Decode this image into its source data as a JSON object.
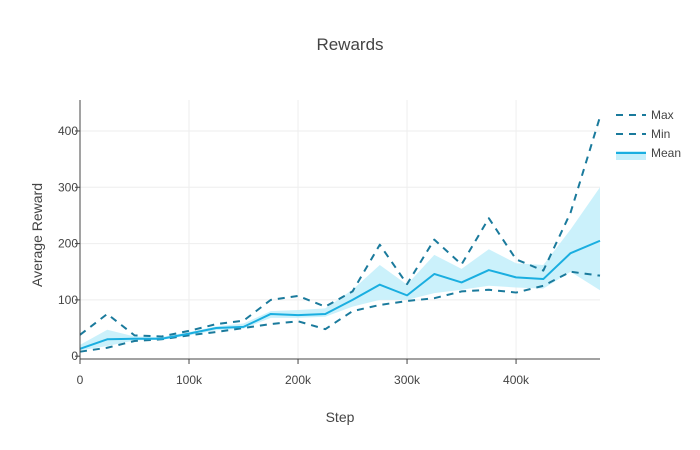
{
  "chart_data": {
    "type": "line",
    "title": "Rewards",
    "xlabel": "Step",
    "ylabel": "Average Reward",
    "xlim": [
      0,
      477000
    ],
    "ylim": [
      -5,
      455
    ],
    "x_ticks": [
      0,
      100000,
      200000,
      300000,
      400000
    ],
    "x_tick_labels": [
      "0",
      "100k",
      "200k",
      "300k",
      "400k"
    ],
    "y_ticks": [
      0,
      100,
      200,
      300,
      400
    ],
    "y_tick_labels": [
      "0",
      "100",
      "200",
      "300",
      "400"
    ],
    "grid": true,
    "legend_position": "top-right",
    "colors": {
      "max": "#1a7a9c",
      "min": "#1a7a9c",
      "mean": "#1aaee0",
      "band": "#c5effb"
    },
    "x": [
      0,
      25000,
      50000,
      75000,
      100000,
      125000,
      150000,
      175000,
      200000,
      225000,
      250000,
      275000,
      300000,
      325000,
      350000,
      375000,
      400000,
      425000,
      450000,
      477000
    ],
    "series": [
      {
        "name": "Max",
        "style": "dash",
        "values": [
          38,
          75,
          37,
          35,
          45,
          57,
          63,
          100,
          107,
          88,
          115,
          198,
          128,
          207,
          163,
          245,
          172,
          152,
          255,
          425
        ]
      },
      {
        "name": "Min",
        "style": "dash",
        "values": [
          8,
          15,
          27,
          30,
          37,
          43,
          50,
          57,
          62,
          48,
          80,
          91,
          98,
          103,
          115,
          118,
          113,
          125,
          150,
          143
        ]
      },
      {
        "name": "Mean",
        "style": "solid",
        "values": [
          13,
          30,
          31,
          31,
          40,
          50,
          52,
          75,
          73,
          75,
          100,
          127,
          108,
          146,
          131,
          153,
          140,
          137,
          183,
          205
        ]
      }
    ],
    "band": {
      "upper": [
        20,
        47,
        35,
        34,
        43,
        53,
        58,
        80,
        82,
        85,
        118,
        162,
        127,
        180,
        155,
        190,
        165,
        162,
        225,
        300
      ],
      "lower": [
        10,
        18,
        28,
        29,
        37,
        46,
        49,
        68,
        68,
        70,
        88,
        100,
        100,
        112,
        118,
        125,
        122,
        120,
        150,
        117
      ]
    }
  }
}
